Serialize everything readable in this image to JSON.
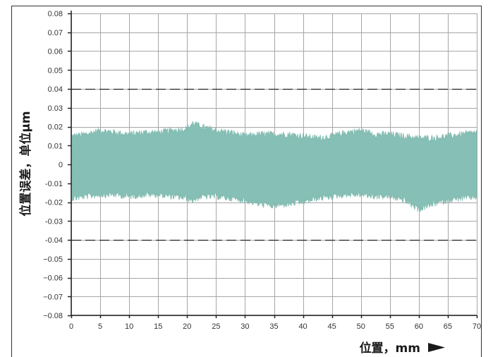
{
  "chart_data": {
    "type": "area",
    "title": "",
    "xlabel": "位置，mm",
    "ylabel": "位置误差，单位μm",
    "x_ticks": [
      "0",
      "5",
      "10",
      "15",
      "20",
      "25",
      "30",
      "35",
      "40",
      "45",
      "50",
      "55",
      "60",
      "65",
      "70"
    ],
    "y_ticks": [
      "0.08",
      "0.07",
      "0.06",
      "0.05",
      "0.04",
      "0.03",
      "0.02",
      "0.01",
      "0",
      "-0.01",
      "-0.02",
      "-0.03",
      "-0.04",
      "−0.05",
      "−0.06",
      "−0.07",
      "−0.08"
    ],
    "xlim": [
      0,
      70
    ],
    "ylim": [
      -0.08,
      0.08
    ],
    "grid": true,
    "fill_color": "#86bfb5",
    "reference_lines": [
      0.04,
      -0.04
    ],
    "series": [
      {
        "x": [
          0,
          2.5,
          5,
          7.5,
          10,
          12.5,
          15,
          17.5,
          20,
          21,
          22.5,
          25,
          27.5,
          30,
          32.5,
          35,
          37.5,
          40,
          42.5,
          45,
          47.5,
          50,
          52.5,
          55,
          57.5,
          60,
          62.5,
          65,
          67.5,
          70
        ],
        "upper": [
          0.015,
          0.016,
          0.018,
          0.017,
          0.016,
          0.017,
          0.017,
          0.018,
          0.019,
          0.022,
          0.02,
          0.018,
          0.017,
          0.015,
          0.016,
          0.016,
          0.016,
          0.015,
          0.014,
          0.015,
          0.017,
          0.018,
          0.016,
          0.016,
          0.015,
          0.014,
          0.014,
          0.015,
          0.016,
          0.017
        ],
        "lower": [
          -0.018,
          -0.017,
          -0.016,
          -0.016,
          -0.017,
          -0.016,
          -0.016,
          -0.017,
          -0.018,
          -0.019,
          -0.017,
          -0.017,
          -0.018,
          -0.019,
          -0.021,
          -0.022,
          -0.021,
          -0.02,
          -0.018,
          -0.017,
          -0.016,
          -0.016,
          -0.017,
          -0.017,
          -0.019,
          -0.024,
          -0.021,
          -0.019,
          -0.018,
          -0.017
        ]
      }
    ]
  }
}
